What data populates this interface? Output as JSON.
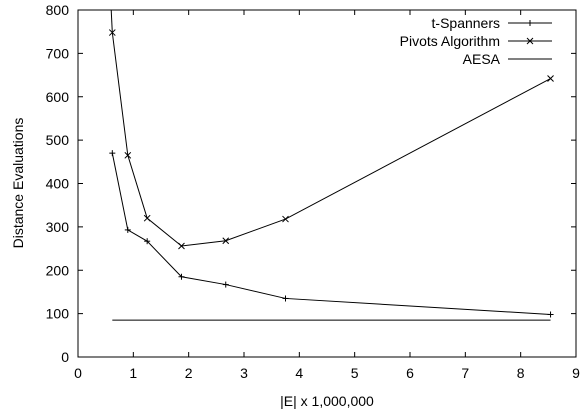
{
  "chart_data": {
    "type": "line",
    "title": "",
    "xlabel": "|E| x 1,000,000",
    "ylabel": "Distance Evaluations",
    "xlim": [
      0,
      9
    ],
    "ylim": [
      0,
      800
    ],
    "xticks": [
      0,
      1,
      2,
      3,
      4,
      5,
      6,
      7,
      8,
      9
    ],
    "yticks": [
      0,
      100,
      200,
      300,
      400,
      500,
      600,
      700,
      800
    ],
    "grid": false,
    "legend_position": "top-right",
    "series": [
      {
        "name": "t-Spanners",
        "marker": "plus",
        "x": [
          0.62,
          0.9,
          1.25,
          1.87,
          2.67,
          3.75,
          8.54
        ],
        "y": [
          470,
          293,
          267,
          185,
          167,
          135,
          98
        ]
      },
      {
        "name": "Pivots Algorithm",
        "marker": "cross",
        "x": [
          0.62,
          0.9,
          1.25,
          1.87,
          2.67,
          3.75,
          8.54
        ],
        "y": [
          748,
          465,
          320,
          256,
          268,
          318,
          642
        ]
      },
      {
        "name": "AESA",
        "marker": "none",
        "x": [
          0.62,
          8.54
        ],
        "y": [
          85,
          85
        ]
      }
    ],
    "extra_segments": [
      {
        "series": "Pivots Algorithm",
        "x": [
          0.6,
          0.62
        ],
        "y": [
          800,
          748
        ]
      }
    ]
  }
}
